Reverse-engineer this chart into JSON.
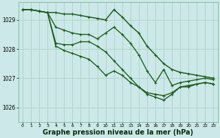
{
  "background_color": "#cce8e8",
  "grid_color": "#b0d4cc",
  "line_color": "#1a5c1a",
  "xlabel": "Graphe pression niveau de la mer (hPa)",
  "xlabel_fontsize": 7,
  "xlim": [
    -0.5,
    23.5
  ],
  "ylim": [
    1025.5,
    1029.6
  ],
  "yticks": [
    1026,
    1027,
    1028,
    1029
  ],
  "xticks": [
    0,
    1,
    2,
    3,
    4,
    5,
    6,
    7,
    8,
    9,
    10,
    11,
    12,
    13,
    14,
    15,
    16,
    17,
    18,
    19,
    20,
    21,
    22,
    23
  ],
  "series": [
    {
      "x": [
        0,
        1,
        2,
        3,
        4,
        5,
        6,
        7,
        8,
        9,
        10,
        11,
        12,
        13,
        14,
        15,
        16,
        17,
        18,
        19,
        20,
        21,
        22,
        23
      ],
      "y": [
        1029.35,
        1029.35,
        1029.3,
        1029.25,
        1029.25,
        1029.2,
        1029.2,
        1029.15,
        1029.1,
        1029.05,
        1029.0,
        1029.35,
        1029.1,
        1028.8,
        1028.55,
        1028.1,
        1027.8,
        1027.5,
        1027.3,
        1027.2,
        1027.15,
        1027.1,
        1027.05,
        1027.0
      ],
      "linestyle": "-",
      "linewidth": 1.1
    },
    {
      "x": [
        0,
        1,
        2,
        3,
        4,
        5,
        6,
        7,
        8,
        9,
        10,
        11,
        12,
        13,
        14,
        15,
        16,
        17,
        18,
        19,
        20,
        21,
        22,
        23
      ],
      "y": [
        1029.35,
        1029.35,
        1029.3,
        1029.25,
        1028.75,
        1028.65,
        1028.55,
        1028.5,
        1028.5,
        1028.35,
        1028.55,
        1028.75,
        1028.5,
        1028.2,
        1027.8,
        1027.25,
        1026.85,
        1027.3,
        1026.75,
        1026.85,
        1026.9,
        1026.95,
        1027.0,
        1026.95
      ],
      "linestyle": "-",
      "linewidth": 1.0
    },
    {
      "x": [
        0,
        1,
        2,
        3,
        4,
        5,
        6,
        7,
        8,
        9,
        10,
        11,
        12,
        13,
        14,
        15,
        16,
        17,
        18,
        19,
        20,
        21,
        22,
        23
      ],
      "y": [
        1029.35,
        1029.35,
        1029.3,
        1029.25,
        1028.2,
        1028.15,
        1028.15,
        1028.25,
        1028.25,
        1028.1,
        1027.9,
        1027.6,
        1027.3,
        1027.0,
        1026.7,
        1026.5,
        1026.45,
        1026.4,
        1026.5,
        1026.7,
        1026.75,
        1026.8,
        1026.85,
        1026.8
      ],
      "linestyle": "-",
      "linewidth": 1.0
    },
    {
      "x": [
        0,
        1,
        2,
        3,
        4,
        5,
        6,
        7,
        8,
        9,
        10,
        11,
        12,
        13,
        14,
        15,
        16,
        17,
        18,
        19,
        20,
        21,
        22,
        23
      ],
      "y": [
        1029.35,
        1029.35,
        1029.3,
        1029.25,
        1028.1,
        1027.95,
        1027.85,
        1027.75,
        1027.65,
        1027.4,
        1027.1,
        1027.25,
        1027.1,
        1026.85,
        1026.7,
        1026.45,
        1026.35,
        1026.25,
        1026.45,
        1026.7,
        1026.7,
        1026.8,
        1026.85,
        1026.8
      ],
      "linestyle": "-",
      "linewidth": 1.0
    }
  ]
}
